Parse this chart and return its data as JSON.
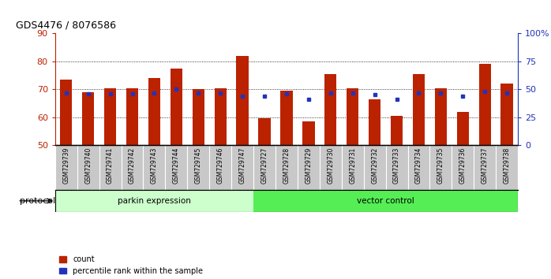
{
  "title": "GDS4476 / 8076586",
  "samples": [
    "GSM729739",
    "GSM729740",
    "GSM729741",
    "GSM729742",
    "GSM729743",
    "GSM729744",
    "GSM729745",
    "GSM729746",
    "GSM729747",
    "GSM729727",
    "GSM729728",
    "GSM729729",
    "GSM729730",
    "GSM729731",
    "GSM729732",
    "GSM729733",
    "GSM729734",
    "GSM729735",
    "GSM729736",
    "GSM729737",
    "GSM729738"
  ],
  "bar_values": [
    73.5,
    69.0,
    70.5,
    70.5,
    74.0,
    77.5,
    70.0,
    70.5,
    82.0,
    59.5,
    69.5,
    58.5,
    75.5,
    70.5,
    66.5,
    60.5,
    75.5,
    70.5,
    62.0,
    79.0,
    72.0
  ],
  "bar_color": "#BB2200",
  "square_color": "#2233BB",
  "square_right_pct": [
    47,
    46,
    46,
    46,
    47,
    50,
    47,
    47,
    44,
    44,
    46,
    41,
    47,
    47,
    45,
    41,
    47,
    47,
    44,
    48,
    47
  ],
  "ylim_left": [
    50,
    90
  ],
  "ylim_right": [
    0,
    100
  ],
  "yticks_left": [
    50,
    60,
    70,
    80,
    90
  ],
  "yticks_right": [
    0,
    25,
    50,
    75,
    100
  ],
  "ytick_labels_right": [
    "0",
    "25",
    "50",
    "75",
    "100%"
  ],
  "grid_values": [
    60,
    70,
    80
  ],
  "parkin_count": 9,
  "total_count": 21,
  "parkin_label": "parkin expression",
  "vector_label": "vector control",
  "protocol_label": "protocol",
  "legend_count_label": "count",
  "legend_pct_label": "percentile rank within the sample",
  "bg_xtick_cell": "#C8C8C8",
  "bg_xtick_border": "#FFFFFF",
  "bg_parkin": "#CCFFCC",
  "bg_vector": "#55EE55",
  "fig_bg": "#FFFFFF"
}
